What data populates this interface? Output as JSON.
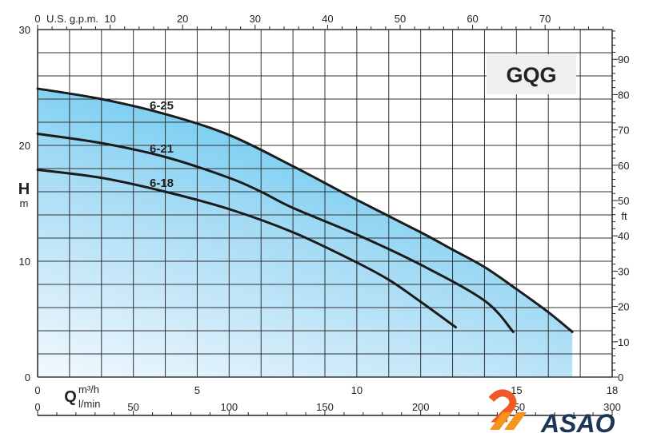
{
  "chart_data": {
    "type": "line",
    "title": "GQG",
    "xlabel": "Q",
    "xunit": "m³/h",
    "xunit_secondary": "l/min",
    "ylabel": "H",
    "yunit": "m",
    "yunit_secondary": "ft",
    "top_axis_label": "U.S. g.p.m.",
    "xlim": [
      0,
      18
    ],
    "ylim": [
      0,
      30
    ],
    "grid": true,
    "x_ticks": [
      0,
      5,
      10,
      15,
      18
    ],
    "y_ticks": [
      0,
      10,
      20,
      30
    ],
    "gpm_ticks": [
      0,
      10,
      20,
      30,
      40,
      50,
      60,
      70
    ],
    "lmin_ticks": [
      0,
      50,
      100,
      150,
      200,
      250,
      300
    ],
    "ft_ticks": [
      0,
      10,
      20,
      30,
      40,
      50,
      60,
      70,
      80,
      90
    ],
    "series": [
      {
        "name": "6-25",
        "x": [
          0,
          2,
          4,
          6,
          8,
          10,
          12,
          13,
          14,
          15,
          16,
          16.75
        ],
        "y": [
          24.9,
          24.0,
          22.7,
          20.9,
          18.2,
          15.3,
          12.5,
          11.0,
          9.5,
          7.6,
          5.6,
          3.9
        ]
      },
      {
        "name": "6-21",
        "x": [
          0,
          2,
          4,
          6,
          7,
          8,
          10,
          12,
          14,
          14.9
        ],
        "y": [
          21.0,
          20.2,
          19.0,
          17.2,
          16.0,
          14.6,
          12.3,
          9.7,
          6.6,
          3.9
        ]
      },
      {
        "name": "6-18",
        "x": [
          0,
          2,
          4,
          6,
          8,
          9.85,
          11,
          12,
          13.1
        ],
        "y": [
          17.9,
          17.2,
          16.0,
          14.5,
          12.5,
          10.1,
          8.4,
          6.5,
          4.3
        ]
      }
    ]
  },
  "logo": {
    "text": "ASAO"
  }
}
